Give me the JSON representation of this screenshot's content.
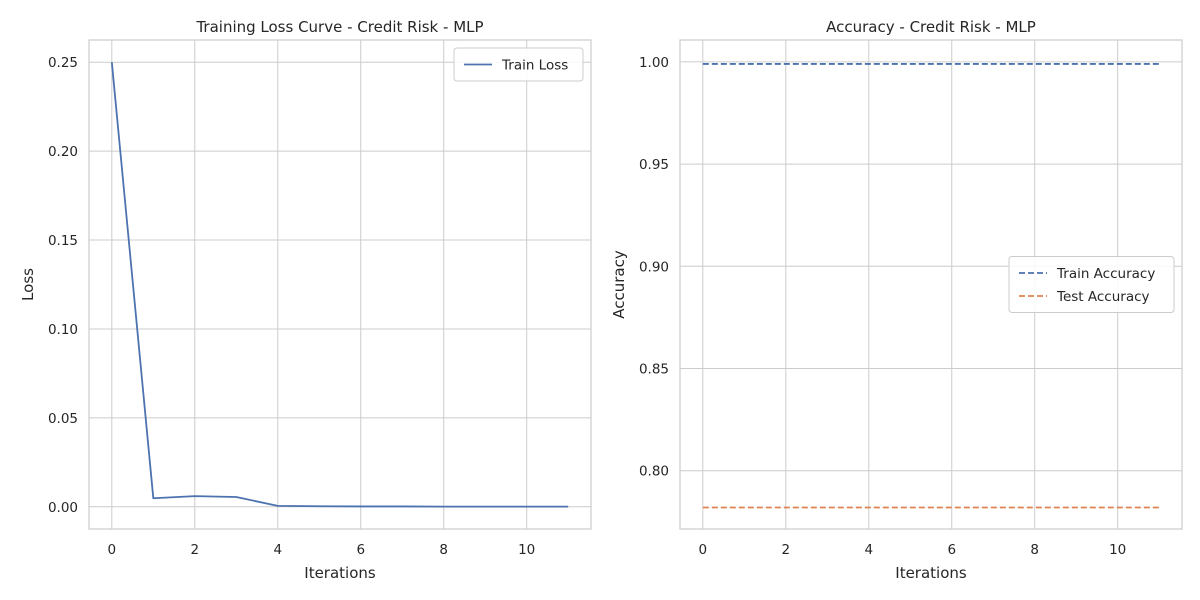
{
  "chart_data": [
    {
      "type": "line",
      "title": "Training Loss Curve - Credit Risk - MLP",
      "xlabel": "Iterations",
      "ylabel": "Loss",
      "xlim": [
        -0.55,
        11.55
      ],
      "ylim": [
        -0.0125,
        0.2625
      ],
      "xticks": [
        0,
        2,
        4,
        6,
        8,
        10
      ],
      "yticks": [
        0.0,
        0.05,
        0.1,
        0.15,
        0.2,
        0.25
      ],
      "ytick_labels": [
        "0.00",
        "0.05",
        "0.10",
        "0.15",
        "0.20",
        "0.25"
      ],
      "grid": true,
      "legend_position": "top-right",
      "x": [
        0,
        1,
        2,
        3,
        4,
        5,
        6,
        7,
        8,
        9,
        10,
        11
      ],
      "series": [
        {
          "name": "Train Loss",
          "style": "solid",
          "color": "#4c72b0",
          "values": [
            0.25,
            0.0048,
            0.006,
            0.0055,
            0.0005,
            0.0003,
            0.0002,
            0.0002,
            0.0001,
            0.0001,
            0.0001,
            0.0001
          ]
        }
      ]
    },
    {
      "type": "line",
      "title": "Accuracy - Credit Risk - MLP",
      "xlabel": "Iterations",
      "ylabel": "Accuracy",
      "xlim": [
        -0.55,
        11.55
      ],
      "ylim": [
        0.7715,
        1.0107
      ],
      "xticks": [
        0,
        2,
        4,
        6,
        8,
        10
      ],
      "yticks": [
        0.8,
        0.85,
        0.9,
        0.95,
        1.0
      ],
      "ytick_labels": [
        "0.80",
        "0.85",
        "0.90",
        "0.95",
        "1.00"
      ],
      "grid": true,
      "legend_position": "center-right",
      "x": [
        0,
        1,
        2,
        3,
        4,
        5,
        6,
        7,
        8,
        9,
        10,
        11
      ],
      "series": [
        {
          "name": "Train Accuracy",
          "style": "dashed",
          "color": "#4c72b0",
          "values": [
            0.999,
            0.999,
            0.999,
            0.999,
            0.999,
            0.999,
            0.999,
            0.999,
            0.999,
            0.999,
            0.999,
            0.999
          ]
        },
        {
          "name": "Test Accuracy",
          "style": "dashed",
          "color": "#dd8452",
          "values": [
            0.782,
            0.782,
            0.782,
            0.782,
            0.782,
            0.782,
            0.782,
            0.782,
            0.782,
            0.782,
            0.782,
            0.782
          ]
        }
      ]
    }
  ]
}
